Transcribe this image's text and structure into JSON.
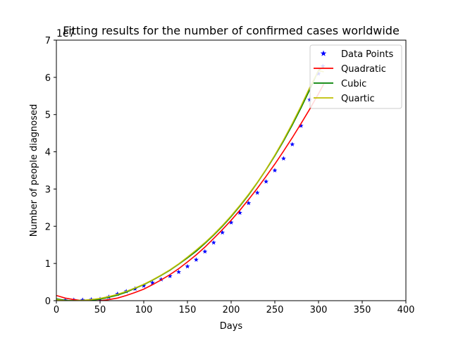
{
  "chart_data": {
    "type": "line",
    "title": "Fitting results for the number of confirmed cases worldwide",
    "xlabel": "Days",
    "ylabel": "Number of people diagnosed",
    "y_offset_label": "1e7",
    "xlim": [
      0,
      400
    ],
    "ylim": [
      0,
      7
    ],
    "x_ticks": [
      "0",
      "50",
      "100",
      "150",
      "200",
      "250",
      "300",
      "350",
      "400"
    ],
    "y_ticks": [
      "0",
      "1",
      "2",
      "3",
      "4",
      "5",
      "6",
      "7"
    ],
    "grid": false,
    "legend_position": "top-right",
    "series": [
      {
        "name": "Data Points",
        "kind": "scatter",
        "marker": "star",
        "color": "#0000ff",
        "x": [
          10,
          20,
          30,
          40,
          50,
          60,
          70,
          80,
          90,
          100,
          110,
          120,
          130,
          140,
          150,
          160,
          170,
          180,
          190,
          200,
          210,
          220,
          230,
          240,
          250,
          260,
          270,
          280,
          290,
          300,
          305
        ],
        "y": [
          0.01,
          0.02,
          0.02,
          0.03,
          0.04,
          0.1,
          0.18,
          0.25,
          0.32,
          0.4,
          0.48,
          0.57,
          0.66,
          0.77,
          0.92,
          1.1,
          1.32,
          1.56,
          1.83,
          2.1,
          2.36,
          2.62,
          2.9,
          3.2,
          3.5,
          3.82,
          4.2,
          4.7,
          5.4,
          6.1,
          6.3
        ]
      },
      {
        "name": "Quadratic",
        "kind": "line",
        "color": "#ff0000",
        "x": [
          0,
          10,
          20,
          30,
          40,
          50,
          60,
          70,
          80,
          90,
          100,
          110,
          120,
          130,
          140,
          150,
          160,
          170,
          180,
          190,
          200,
          210,
          220,
          230,
          240,
          250,
          260,
          270,
          280,
          290,
          300,
          306
        ],
        "y": [
          0.14,
          0.07,
          0.03,
          0.0,
          0.0,
          0.0,
          0.03,
          0.07,
          0.14,
          0.22,
          0.31,
          0.43,
          0.56,
          0.7,
          0.86,
          1.04,
          1.23,
          1.44,
          1.67,
          1.91,
          2.16,
          2.43,
          2.72,
          3.02,
          3.34,
          3.67,
          4.02,
          4.38,
          4.76,
          5.15,
          5.56,
          5.82
        ]
      },
      {
        "name": "Cubic",
        "kind": "line",
        "color": "#008000",
        "x": [
          0,
          10,
          20,
          30,
          40,
          50,
          60,
          70,
          80,
          90,
          100,
          110,
          120,
          130,
          140,
          150,
          160,
          170,
          180,
          190,
          200,
          210,
          220,
          230,
          240,
          250,
          260,
          270,
          280,
          290,
          300,
          306
        ],
        "y": [
          0.05,
          0.01,
          0.0,
          0.0,
          0.01,
          0.04,
          0.09,
          0.15,
          0.23,
          0.33,
          0.43,
          0.55,
          0.68,
          0.82,
          0.98,
          1.15,
          1.33,
          1.54,
          1.76,
          2.0,
          2.26,
          2.54,
          2.84,
          3.17,
          3.52,
          3.89,
          4.29,
          4.72,
          5.18,
          5.67,
          6.19,
          6.28
        ]
      },
      {
        "name": "Quartic",
        "kind": "line",
        "color": "#bfbf00",
        "x": [
          0,
          10,
          20,
          30,
          40,
          50,
          60,
          70,
          80,
          90,
          100,
          110,
          120,
          130,
          140,
          150,
          160,
          170,
          180,
          190,
          200,
          210,
          220,
          230,
          240,
          250,
          260,
          270,
          280,
          290,
          300,
          306
        ],
        "y": [
          0.03,
          0.0,
          0.0,
          0.01,
          0.03,
          0.06,
          0.11,
          0.17,
          0.25,
          0.34,
          0.44,
          0.56,
          0.69,
          0.83,
          0.99,
          1.17,
          1.36,
          1.56,
          1.78,
          2.02,
          2.28,
          2.56,
          2.86,
          3.18,
          3.53,
          3.91,
          4.32,
          4.76,
          5.23,
          5.73,
          6.18,
          6.15
        ]
      }
    ]
  }
}
